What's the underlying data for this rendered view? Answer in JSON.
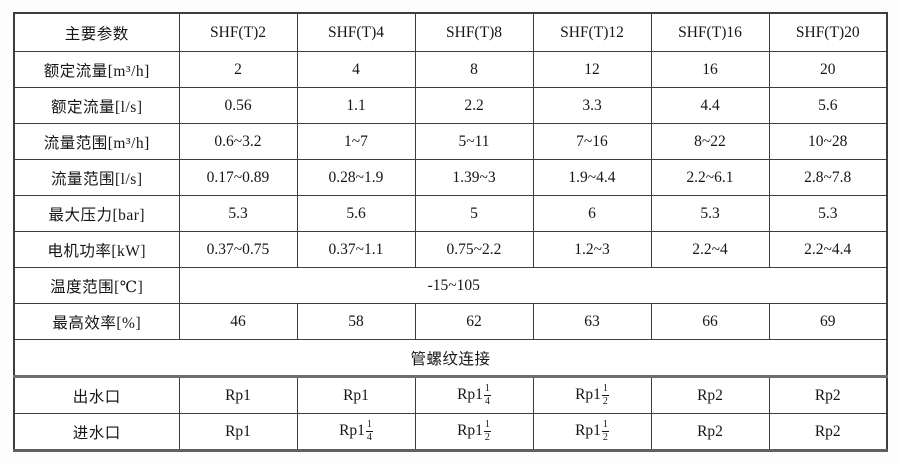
{
  "table": {
    "header": {
      "param_label": "主要参数",
      "models": [
        "SHF(T)2",
        "SHF(T)4",
        "SHF(T)8",
        "SHF(T)12",
        "SHF(T)16",
        "SHF(T)20"
      ]
    },
    "spec_rows": [
      {
        "label": "额定流量[m³/h]",
        "values": [
          "2",
          "4",
          "8",
          "12",
          "16",
          "20"
        ]
      },
      {
        "label": "额定流量[l/s]",
        "values": [
          "0.56",
          "1.1",
          "2.2",
          "3.3",
          "4.4",
          "5.6"
        ]
      },
      {
        "label": "流量范围[m³/h]",
        "values": [
          "0.6~3.2",
          "1~7",
          "5~11",
          "7~16",
          "8~22",
          "10~28"
        ]
      },
      {
        "label": "流量范围[l/s]",
        "values": [
          "0.17~0.89",
          "0.28~1.9",
          "1.39~3",
          "1.9~4.4",
          "2.2~6.1",
          "2.8~7.8"
        ]
      },
      {
        "label": "最大压力[bar]",
        "values": [
          "5.3",
          "5.6",
          "5",
          "6",
          "5.3",
          "5.3"
        ]
      },
      {
        "label": "电机功率[kW]",
        "values": [
          "0.37~0.75",
          "0.37~1.1",
          "0.75~2.2",
          "1.2~3",
          "2.2~4",
          "2.2~4.4"
        ]
      }
    ],
    "temperature_row": {
      "label": "温度范围[℃]",
      "value": "-15~105"
    },
    "efficiency_row": {
      "label": "最高效率[%]",
      "values": [
        "46",
        "58",
        "62",
        "63",
        "66",
        "69"
      ]
    },
    "section_header": "管螺纹连接",
    "thread_rows": [
      {
        "label": "出水口",
        "values": [
          "Rp1",
          "Rp1",
          {
            "text": "Rp1",
            "frac": {
              "num": "1",
              "den": "4"
            }
          },
          {
            "text": "Rp1",
            "frac": {
              "num": "1",
              "den": "2"
            }
          },
          "Rp2",
          "Rp2"
        ]
      },
      {
        "label": "进水口",
        "values": [
          "Rp1",
          {
            "text": "Rp1",
            "frac": {
              "num": "1",
              "den": "4"
            }
          },
          {
            "text": "Rp1",
            "frac": {
              "num": "1",
              "den": "2"
            }
          },
          {
            "text": "Rp1",
            "frac": {
              "num": "1",
              "den": "2"
            }
          },
          "Rp2",
          "Rp2"
        ]
      }
    ],
    "colors": {
      "border": "#3d3d3d",
      "thick_border": "#6e6e6e",
      "text": "#161616",
      "background": "#ffffff"
    }
  }
}
